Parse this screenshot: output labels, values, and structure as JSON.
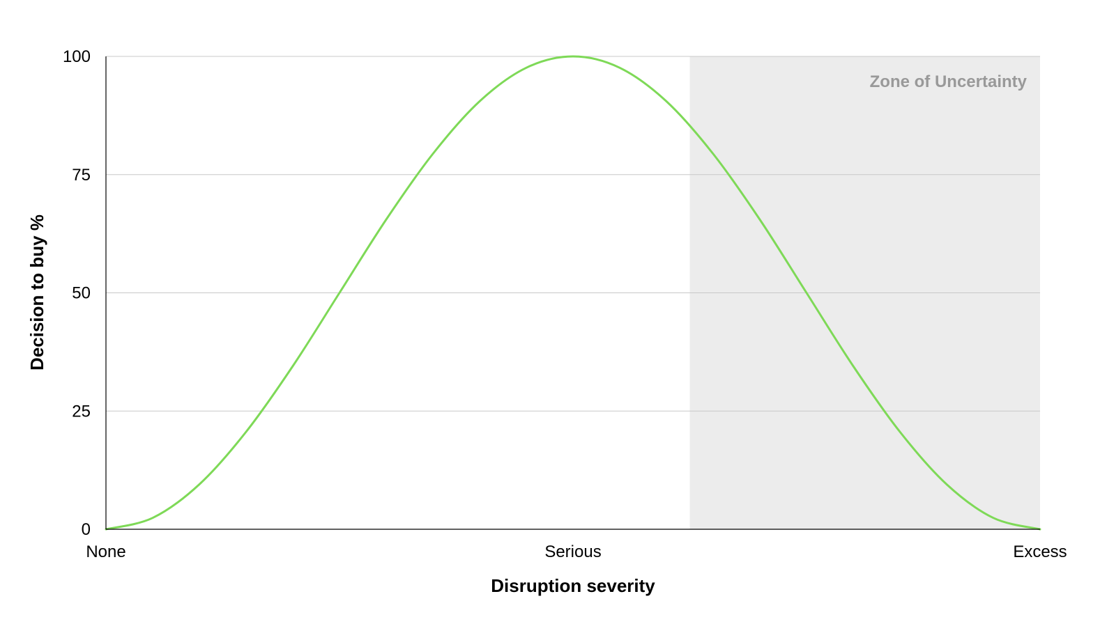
{
  "chart_data": {
    "type": "line",
    "title": "",
    "xlabel": "Disruption severity",
    "ylabel": "Decision to buy %",
    "x_ticks": [
      {
        "value": 0,
        "label": "None"
      },
      {
        "value": 50,
        "label": "Serious"
      },
      {
        "value": 100,
        "label": "Excess"
      }
    ],
    "y_ticks": [
      0,
      25,
      50,
      75,
      100
    ],
    "xlim": [
      0,
      100
    ],
    "ylim": [
      0,
      100
    ],
    "grid": "horizontal",
    "legend": "none",
    "series": [
      {
        "x": [
          0,
          5,
          10,
          15,
          20,
          25,
          30,
          35,
          40,
          45,
          50,
          55,
          60,
          65,
          70,
          75,
          80,
          85,
          90,
          95,
          100
        ],
        "y": [
          0,
          2.4,
          9.5,
          20.6,
          34.5,
          50,
          65.5,
          79.4,
          90.5,
          97.6,
          100,
          97.6,
          90.5,
          79.4,
          65.5,
          50,
          34.5,
          20.6,
          9.5,
          2.4,
          0
        ],
        "color": "#7ed957"
      }
    ],
    "shaded_region": {
      "x_start": 62.5,
      "x_end": 100,
      "label": "Zone of Uncertainty",
      "fill": "#ececec",
      "label_color": "#999999"
    },
    "colors": {
      "gridline": "#c8c8c8",
      "axis": "#000000"
    }
  }
}
